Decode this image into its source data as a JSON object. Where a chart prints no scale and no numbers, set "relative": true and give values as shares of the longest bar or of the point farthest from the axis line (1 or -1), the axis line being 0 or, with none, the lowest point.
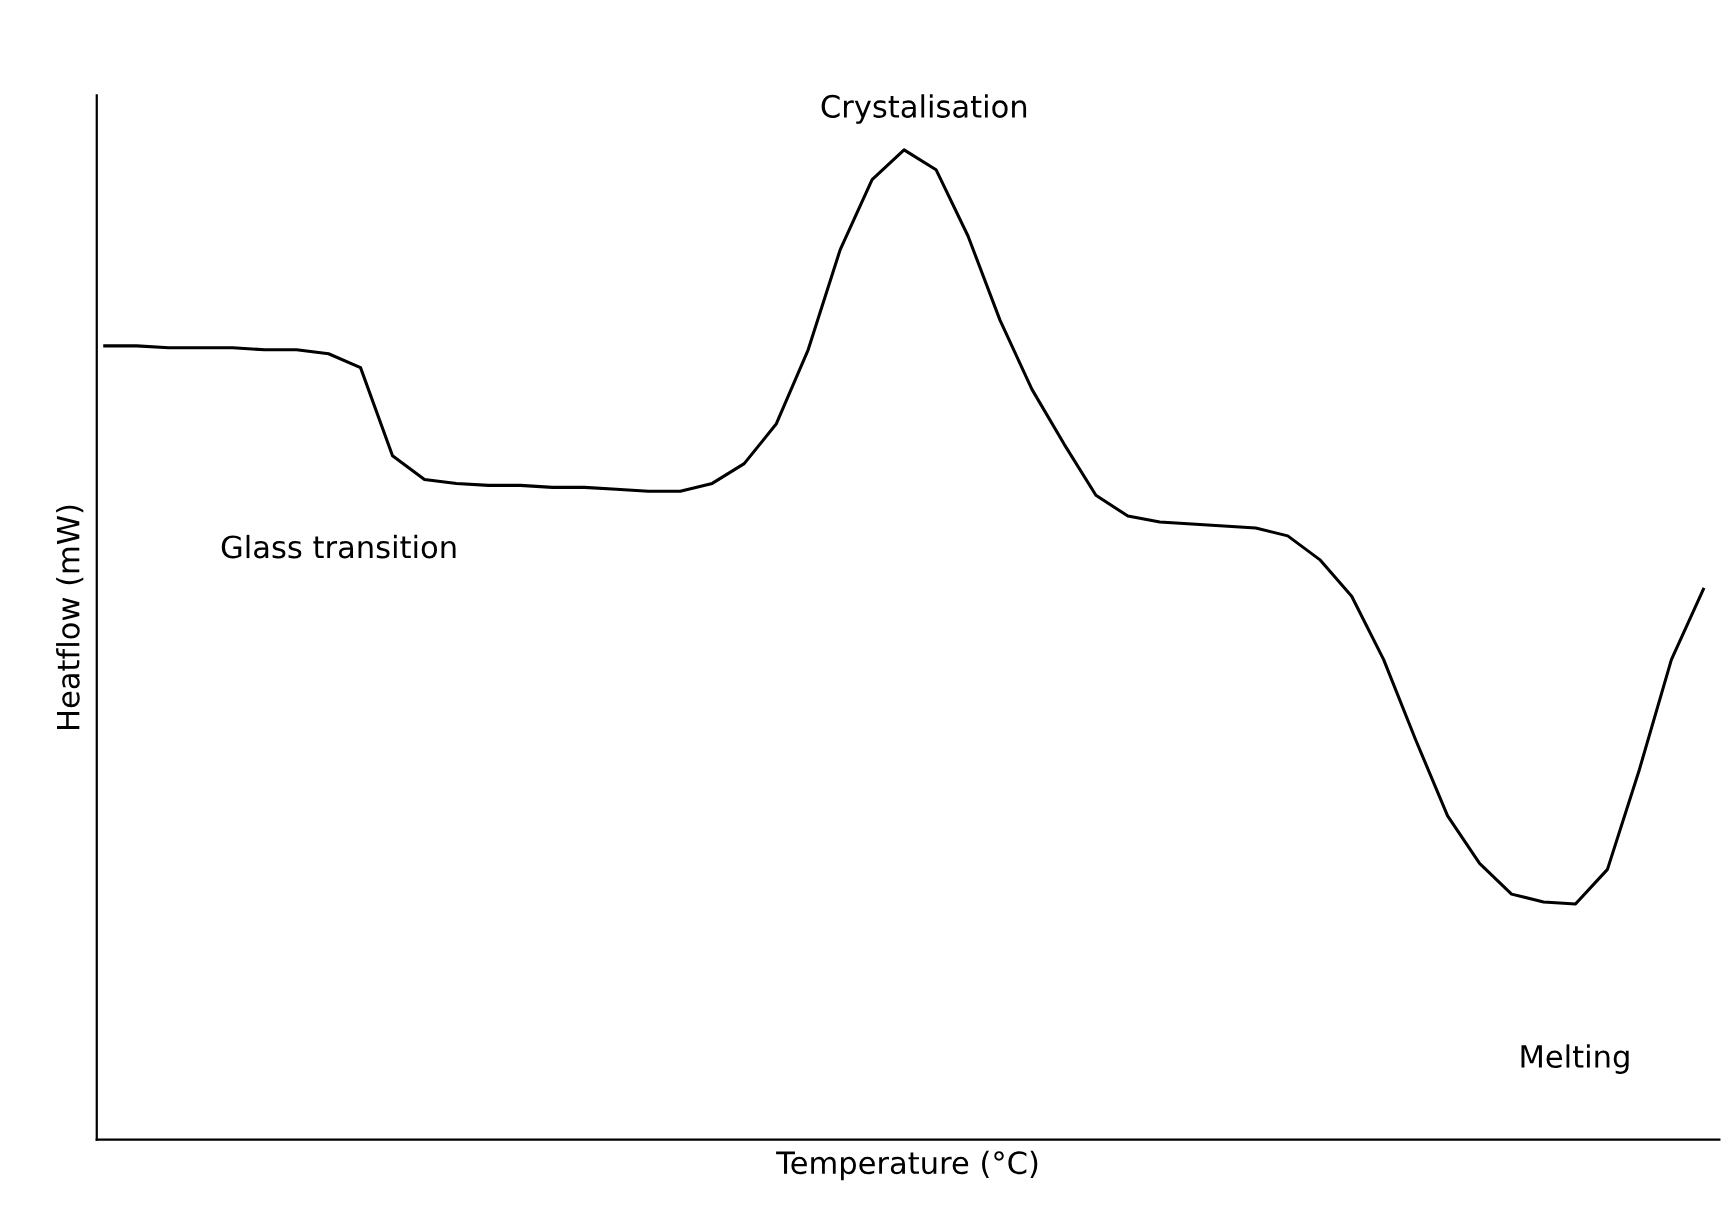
{
  "chart_data": {
    "type": "line",
    "relative": true,
    "xlabel": "Temperature (°C)",
    "ylabel": "Heatflow (mW)",
    "categories": [
      null,
      null,
      null,
      null,
      null,
      null,
      null,
      null,
      null,
      null,
      null,
      null,
      null,
      null,
      null,
      null,
      null,
      null,
      null,
      null,
      null,
      null,
      null,
      null,
      null,
      null,
      null,
      null,
      null,
      null,
      null,
      null,
      null,
      null,
      null,
      null,
      null,
      null,
      null,
      null,
      null,
      null,
      null,
      null,
      null,
      null,
      null,
      null,
      null,
      null,
      null
    ],
    "series": [
      {
        "color": "#000000",
        "values": [
          0.802,
          0.802,
          0.8,
          0.8,
          0.8,
          0.798,
          0.798,
          0.794,
          0.78,
          0.691,
          0.667,
          0.663,
          0.661,
          0.661,
          0.659,
          0.659,
          0.657,
          0.655,
          0.655,
          0.663,
          0.683,
          0.723,
          0.798,
          0.899,
          0.97,
          1.0,
          0.98,
          0.913,
          0.828,
          0.758,
          0.703,
          0.651,
          0.63,
          0.624,
          0.622,
          0.62,
          0.618,
          0.61,
          0.586,
          0.549,
          0.485,
          0.404,
          0.327,
          0.279,
          0.248,
          0.24,
          0.238,
          0.273,
          0.374,
          0.485,
          0.556
        ]
      }
    ],
    "annotations": [
      "Glass transition",
      "Crystalisation",
      "Melting"
    ],
    "marker": "none",
    "line_style": "solid"
  }
}
